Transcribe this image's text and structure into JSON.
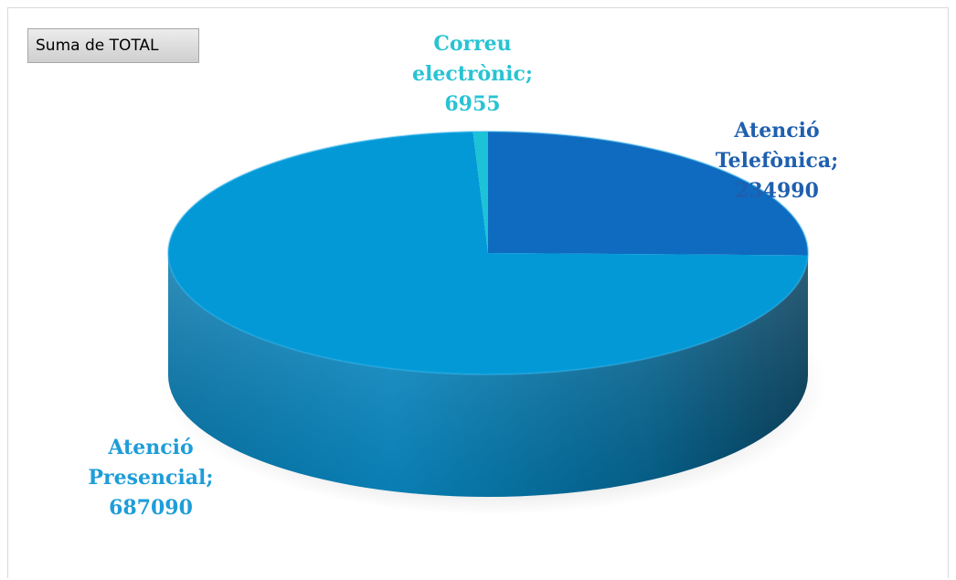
{
  "chart_data": {
    "type": "pie",
    "title": "",
    "field_button": "Suma de TOTAL",
    "legend": "none",
    "slices": [
      {
        "category": "Atenció Telefònica",
        "value": 234990,
        "label_lines": [
          "Atenció",
          "Telefònica;",
          "234990"
        ],
        "color": "#0E6BC0",
        "label_color": "#1F5FAE"
      },
      {
        "category": "Atenció Presencial",
        "value": 687090,
        "label_lines": [
          "Atenció",
          "Presencial;",
          "687090"
        ],
        "color": "#0399D7",
        "label_color": "#1E9DD8"
      },
      {
        "category": "Correu electrònic",
        "value": 6955,
        "label_lines": [
          "Correu",
          "electrònic;",
          "6955"
        ],
        "color": "#1CC2D6",
        "label_color": "#27C3D3"
      }
    ]
  }
}
